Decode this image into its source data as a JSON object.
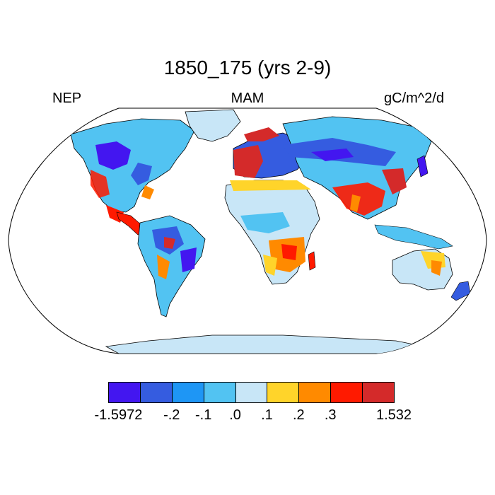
{
  "title": "1850_175 (yrs 2-9)",
  "left_label": "NEP",
  "center_label": "MAM",
  "right_label": "gC/m^2/d",
  "colorbar": {
    "colors": [
      "#4316f0",
      "#355ce0",
      "#1e96f5",
      "#52c3f2",
      "#c8e6f7",
      "#ffd42a",
      "#ff8a00",
      "#ff1a00",
      "#d42a2a"
    ],
    "labels": [
      "-1.5972",
      "-.2",
      "-.1",
      ".0",
      ".1",
      ".2",
      ".3",
      "1.532"
    ]
  },
  "map": {
    "projection": "Robinson",
    "ocean_color": "#ffffff",
    "coastline_color": "#000000"
  }
}
